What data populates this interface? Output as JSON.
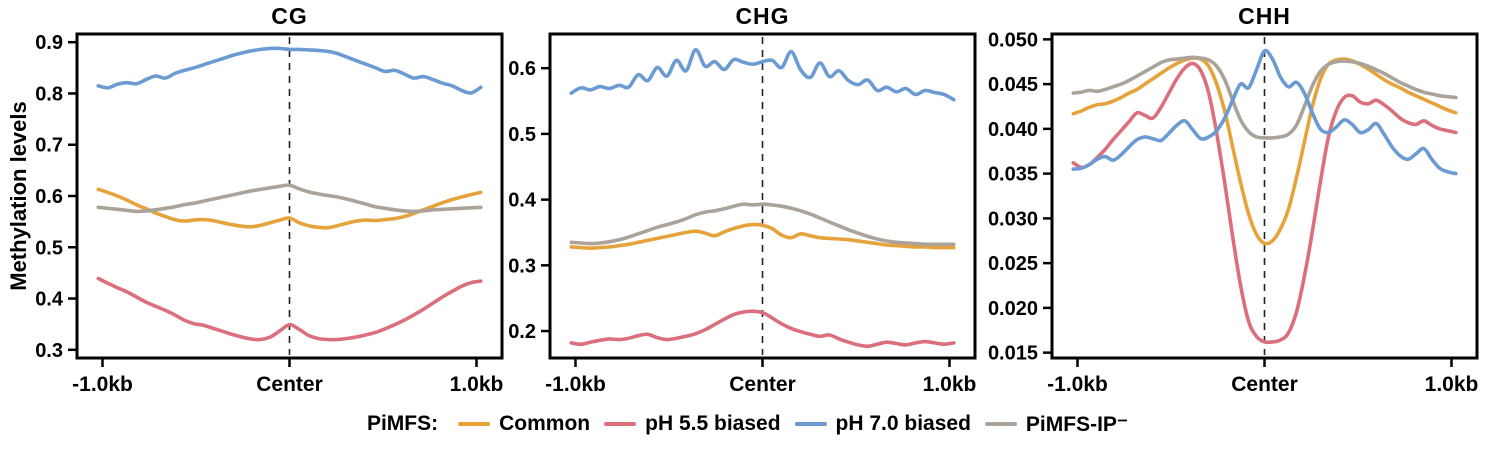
{
  "y_axis_label": "Methylation levels",
  "legend": {
    "prefix": "PiMFS:",
    "items": [
      {
        "label": "Common",
        "color": "#E7A33B"
      },
      {
        "label": "pH 5.5 biased",
        "color": "#DB6F7D"
      },
      {
        "label": "pH 7.0 biased",
        "color": "#6B9BD2"
      },
      {
        "label": "PiMFS-IP⁻",
        "color": "#ABA39A"
      }
    ]
  },
  "chart_data": [
    {
      "type": "line",
      "title": "CG",
      "x_ticks": [
        "-1.0kb",
        "Center",
        "1.0kb"
      ],
      "x_range": [
        -1,
        1
      ],
      "ylim": [
        0.284,
        0.916
      ],
      "y_ticks": [
        "0.9",
        "0.8",
        "0.7",
        "0.6",
        "0.5",
        "0.4",
        "0.3"
      ],
      "center_line": true,
      "series": [
        {
          "name": "Common",
          "color": "#E7A33B",
          "values": [
            0.613,
            0.607,
            0.6,
            0.592,
            0.583,
            0.575,
            0.567,
            0.56,
            0.554,
            0.551,
            0.553,
            0.554,
            0.552,
            0.548,
            0.544,
            0.541,
            0.54,
            0.543,
            0.548,
            0.553,
            0.557,
            0.548,
            0.542,
            0.539,
            0.538,
            0.542,
            0.547,
            0.551,
            0.553,
            0.552,
            0.554,
            0.556,
            0.56,
            0.566,
            0.573,
            0.58,
            0.587,
            0.593,
            0.598,
            0.603,
            0.607
          ]
        },
        {
          "name": "pH 5.5 biased",
          "color": "#DB6F7D",
          "values": [
            0.439,
            0.43,
            0.421,
            0.413,
            0.403,
            0.393,
            0.385,
            0.377,
            0.368,
            0.358,
            0.351,
            0.348,
            0.342,
            0.336,
            0.33,
            0.325,
            0.321,
            0.32,
            0.325,
            0.337,
            0.349,
            0.34,
            0.328,
            0.322,
            0.32,
            0.32,
            0.322,
            0.325,
            0.329,
            0.334,
            0.341,
            0.349,
            0.358,
            0.368,
            0.379,
            0.391,
            0.403,
            0.414,
            0.424,
            0.431,
            0.434
          ]
        },
        {
          "name": "pH 7.0 biased",
          "color": "#6B9BD2",
          "values": [
            0.815,
            0.811,
            0.818,
            0.821,
            0.819,
            0.827,
            0.834,
            0.83,
            0.839,
            0.845,
            0.85,
            0.856,
            0.862,
            0.868,
            0.874,
            0.879,
            0.883,
            0.886,
            0.888,
            0.888,
            0.886,
            0.886,
            0.885,
            0.884,
            0.882,
            0.878,
            0.871,
            0.864,
            0.857,
            0.85,
            0.843,
            0.845,
            0.838,
            0.83,
            0.833,
            0.827,
            0.82,
            0.815,
            0.806,
            0.801,
            0.812
          ]
        },
        {
          "name": "PiMFS-IP⁻",
          "color": "#ABA39A",
          "values": [
            0.578,
            0.576,
            0.574,
            0.572,
            0.57,
            0.571,
            0.573,
            0.576,
            0.579,
            0.583,
            0.586,
            0.59,
            0.594,
            0.598,
            0.602,
            0.606,
            0.61,
            0.613,
            0.616,
            0.619,
            0.621,
            0.614,
            0.608,
            0.604,
            0.601,
            0.598,
            0.594,
            0.589,
            0.584,
            0.579,
            0.576,
            0.573,
            0.571,
            0.57,
            0.571,
            0.573,
            0.574,
            0.575,
            0.576,
            0.577,
            0.578
          ]
        }
      ]
    },
    {
      "type": "line",
      "title": "CHG",
      "x_ticks": [
        "-1.0kb",
        "Center",
        "1.0kb"
      ],
      "x_range": [
        -1,
        1
      ],
      "ylim": [
        0.159,
        0.652
      ],
      "y_ticks": [
        "0.6",
        "0.5",
        "0.4",
        "0.3",
        "0.2"
      ],
      "center_line": true,
      "series": [
        {
          "name": "Common",
          "color": "#E7A33B",
          "values": [
            0.328,
            0.327,
            0.326,
            0.327,
            0.328,
            0.33,
            0.332,
            0.335,
            0.338,
            0.341,
            0.344,
            0.347,
            0.35,
            0.352,
            0.349,
            0.345,
            0.351,
            0.356,
            0.36,
            0.362,
            0.361,
            0.356,
            0.346,
            0.342,
            0.348,
            0.345,
            0.342,
            0.341,
            0.34,
            0.339,
            0.337,
            0.335,
            0.333,
            0.331,
            0.33,
            0.329,
            0.328,
            0.328,
            0.327,
            0.327,
            0.327
          ]
        },
        {
          "name": "pH 5.5 biased",
          "color": "#DB6F7D",
          "values": [
            0.182,
            0.18,
            0.183,
            0.186,
            0.188,
            0.187,
            0.189,
            0.193,
            0.195,
            0.19,
            0.187,
            0.189,
            0.192,
            0.196,
            0.202,
            0.21,
            0.218,
            0.225,
            0.229,
            0.23,
            0.228,
            0.22,
            0.211,
            0.204,
            0.199,
            0.195,
            0.192,
            0.194,
            0.188,
            0.183,
            0.179,
            0.177,
            0.18,
            0.183,
            0.181,
            0.179,
            0.182,
            0.184,
            0.182,
            0.18,
            0.182
          ]
        },
        {
          "name": "pH 7.0 biased",
          "color": "#6B9BD2",
          "values": [
            0.562,
            0.57,
            0.567,
            0.572,
            0.569,
            0.574,
            0.571,
            0.59,
            0.581,
            0.601,
            0.588,
            0.612,
            0.596,
            0.628,
            0.603,
            0.61,
            0.598,
            0.613,
            0.609,
            0.606,
            0.61,
            0.612,
            0.601,
            0.625,
            0.597,
            0.586,
            0.608,
            0.587,
            0.596,
            0.581,
            0.575,
            0.582,
            0.566,
            0.571,
            0.564,
            0.569,
            0.56,
            0.566,
            0.563,
            0.56,
            0.552
          ]
        },
        {
          "name": "PiMFS-IP⁻",
          "color": "#ABA39A",
          "values": [
            0.335,
            0.334,
            0.333,
            0.334,
            0.336,
            0.339,
            0.343,
            0.348,
            0.353,
            0.358,
            0.362,
            0.366,
            0.371,
            0.377,
            0.381,
            0.383,
            0.386,
            0.39,
            0.393,
            0.392,
            0.393,
            0.392,
            0.39,
            0.387,
            0.383,
            0.378,
            0.372,
            0.366,
            0.36,
            0.354,
            0.349,
            0.344,
            0.34,
            0.337,
            0.335,
            0.334,
            0.333,
            0.332,
            0.332,
            0.332,
            0.332
          ]
        }
      ]
    },
    {
      "type": "line",
      "title": "CHH",
      "x_ticks": [
        "-1.0kb",
        "Center",
        "1.0kb"
      ],
      "x_range": [
        -1,
        1
      ],
      "ylim": [
        0.0144,
        0.0506
      ],
      "y_ticks": [
        "0.050",
        "0.045",
        "0.040",
        "0.035",
        "0.030",
        "0.025",
        "0.020",
        "0.015"
      ],
      "center_line": true,
      "series": [
        {
          "name": "Common",
          "color": "#E7A33B",
          "values": [
            0.0417,
            0.042,
            0.0424,
            0.0427,
            0.0428,
            0.0431,
            0.0435,
            0.044,
            0.0444,
            0.045,
            0.0456,
            0.0462,
            0.0468,
            0.0473,
            0.0477,
            0.0479,
            0.0478,
            0.047,
            0.045,
            0.042,
            0.038,
            0.034,
            0.0305,
            0.0282,
            0.0272,
            0.0275,
            0.0288,
            0.031,
            0.0345,
            0.0385,
            0.0425,
            0.0455,
            0.0472,
            0.0477,
            0.0478,
            0.0476,
            0.0472,
            0.0467,
            0.0461,
            0.0455,
            0.045,
            0.0446,
            0.0441,
            0.0437,
            0.0433,
            0.0429,
            0.0425,
            0.0421,
            0.0418
          ]
        },
        {
          "name": "pH 5.5 biased",
          "color": "#DB6F7D",
          "values": [
            0.0362,
            0.0357,
            0.036,
            0.0368,
            0.0377,
            0.0388,
            0.0398,
            0.0408,
            0.0418,
            0.0415,
            0.0412,
            0.0424,
            0.044,
            0.0456,
            0.0468,
            0.0473,
            0.0465,
            0.044,
            0.0395,
            0.034,
            0.028,
            0.0225,
            0.0185,
            0.0168,
            0.0162,
            0.0162,
            0.0164,
            0.0172,
            0.0195,
            0.0235,
            0.0285,
            0.034,
            0.039,
            0.042,
            0.0435,
            0.0437,
            0.043,
            0.0428,
            0.0432,
            0.0427,
            0.042,
            0.0412,
            0.0407,
            0.0405,
            0.0409,
            0.0404,
            0.04,
            0.0398,
            0.0396
          ]
        },
        {
          "name": "pH 7.0 biased",
          "color": "#6B9BD2",
          "values": [
            0.0355,
            0.0356,
            0.036,
            0.0366,
            0.0369,
            0.0365,
            0.0371,
            0.038,
            0.0388,
            0.0391,
            0.0389,
            0.0387,
            0.0395,
            0.0404,
            0.0409,
            0.0399,
            0.0389,
            0.0391,
            0.0398,
            0.0412,
            0.0432,
            0.045,
            0.0446,
            0.0466,
            0.0487,
            0.0478,
            0.0458,
            0.0447,
            0.0452,
            0.044,
            0.0418,
            0.04,
            0.0396,
            0.0402,
            0.041,
            0.0405,
            0.0396,
            0.0399,
            0.0406,
            0.0394,
            0.038,
            0.037,
            0.0366,
            0.0372,
            0.0378,
            0.0366,
            0.0356,
            0.0352,
            0.035
          ]
        },
        {
          "name": "PiMFS-IP⁻",
          "color": "#ABA39A",
          "values": [
            0.044,
            0.0441,
            0.0443,
            0.0442,
            0.0444,
            0.0447,
            0.045,
            0.0454,
            0.0459,
            0.0464,
            0.0469,
            0.0474,
            0.0477,
            0.0478,
            0.0479,
            0.048,
            0.0479,
            0.0477,
            0.047,
            0.0455,
            0.0432,
            0.041,
            0.0397,
            0.0391,
            0.039,
            0.039,
            0.0391,
            0.0394,
            0.0404,
            0.0425,
            0.0448,
            0.0464,
            0.0472,
            0.0475,
            0.0476,
            0.0475,
            0.0473,
            0.047,
            0.0466,
            0.0462,
            0.0457,
            0.0452,
            0.0448,
            0.0444,
            0.0441,
            0.0439,
            0.0437,
            0.0436,
            0.0435
          ]
        }
      ]
    }
  ]
}
